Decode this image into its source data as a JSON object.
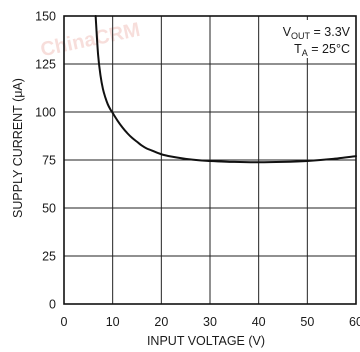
{
  "chart_data": {
    "type": "line",
    "title": "",
    "xlabel": "INPUT VOLTAGE (V)",
    "ylabel": "SUPPLY CURRENT (μA)",
    "xlim": [
      0,
      60
    ],
    "ylim": [
      0,
      150
    ],
    "x_ticks": [
      "0",
      "10",
      "20",
      "30",
      "40",
      "50",
      "60"
    ],
    "y_ticks": [
      "0",
      "25",
      "50",
      "75",
      "100",
      "125",
      "150"
    ],
    "grid": true,
    "legend": "none",
    "annotations": [
      {
        "main": "V",
        "sub": "OUT",
        "rest": " = 3.3V"
      },
      {
        "main": "T",
        "sub": "A",
        "rest": " = 25°C"
      }
    ],
    "series": [
      {
        "x": [
          6.5,
          7,
          7.5,
          8,
          8.5,
          9,
          9.5,
          10,
          11,
          12,
          13,
          14,
          15,
          16,
          17,
          18,
          20,
          22,
          25,
          28,
          30,
          35,
          40,
          45,
          50,
          55,
          60
        ],
        "values": [
          150,
          130,
          119,
          112,
          107.5,
          104,
          101.5,
          99.5,
          95.5,
          92,
          89,
          86.5,
          84.5,
          82.5,
          81,
          80,
          78,
          76.8,
          75.6,
          74.8,
          74.5,
          74,
          73.8,
          74,
          74.5,
          75.5,
          77
        ],
        "color": "#111111"
      }
    ]
  },
  "watermark": {
    "text": "ChinaCRM",
    "color": "#f2c4bf"
  }
}
